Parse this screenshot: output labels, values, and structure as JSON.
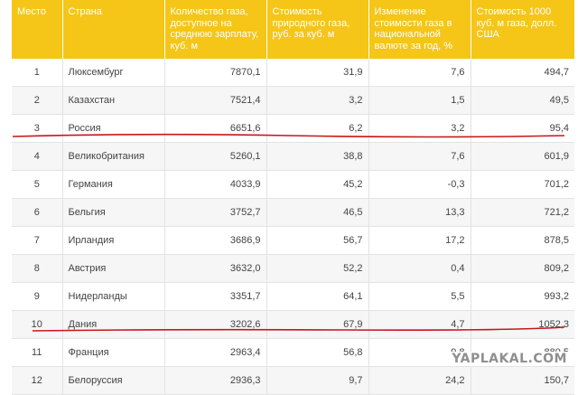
{
  "table": {
    "headers": [
      "Место",
      "Страна",
      "Количество газа, доступное на среднюю зарплату, куб. м",
      "Стоимость природного газа, руб. за куб. м",
      "Изменение стоимости газа в национальной валюте за год, %",
      "Стоимость 1000 куб. м газа, долл. США"
    ],
    "rows": [
      [
        "1",
        "Люксембург",
        "7870,1",
        "31,9",
        "7,6",
        "494,7"
      ],
      [
        "2",
        "Казахстан",
        "7521,4",
        "3,2",
        "1,5",
        "49,5"
      ],
      [
        "3",
        "Россия",
        "6651,6",
        "6,2",
        "3,2",
        "95,4"
      ],
      [
        "4",
        "Великобритания",
        "5260,1",
        "38,8",
        "7,6",
        "601,9"
      ],
      [
        "5",
        "Германия",
        "4033,9",
        "45,2",
        "-0,3",
        "701,2"
      ],
      [
        "6",
        "Бельгия",
        "3752,7",
        "46,5",
        "13,3",
        "721,2"
      ],
      [
        "7",
        "Ирландия",
        "3686,9",
        "56,7",
        "17,2",
        "878,5"
      ],
      [
        "8",
        "Австрия",
        "3632,0",
        "52,2",
        "0,4",
        "809,2"
      ],
      [
        "9",
        "Нидерланды",
        "3351,7",
        "64,1",
        "5,5",
        "993,2"
      ],
      [
        "10",
        "Дания",
        "3202,6",
        "67,9",
        "4,7",
        "1052,3"
      ],
      [
        "11",
        "Франция",
        "2963,4",
        "56,8",
        "9,8",
        "880,5"
      ],
      [
        "12",
        "Белоруссия",
        "2936,3",
        "9,7",
        "24,2",
        "150,7"
      ]
    ]
  },
  "annotations": {
    "highlighted_rows": [
      "3",
      "10"
    ],
    "line_color": "#c8161d"
  },
  "watermark": "YAPLAKAL.COM",
  "colors": {
    "header_bg": "#f5c518",
    "header_text": "#ffffff",
    "row_alt_bg": "#f6f6f6",
    "cell_text": "#444444"
  }
}
